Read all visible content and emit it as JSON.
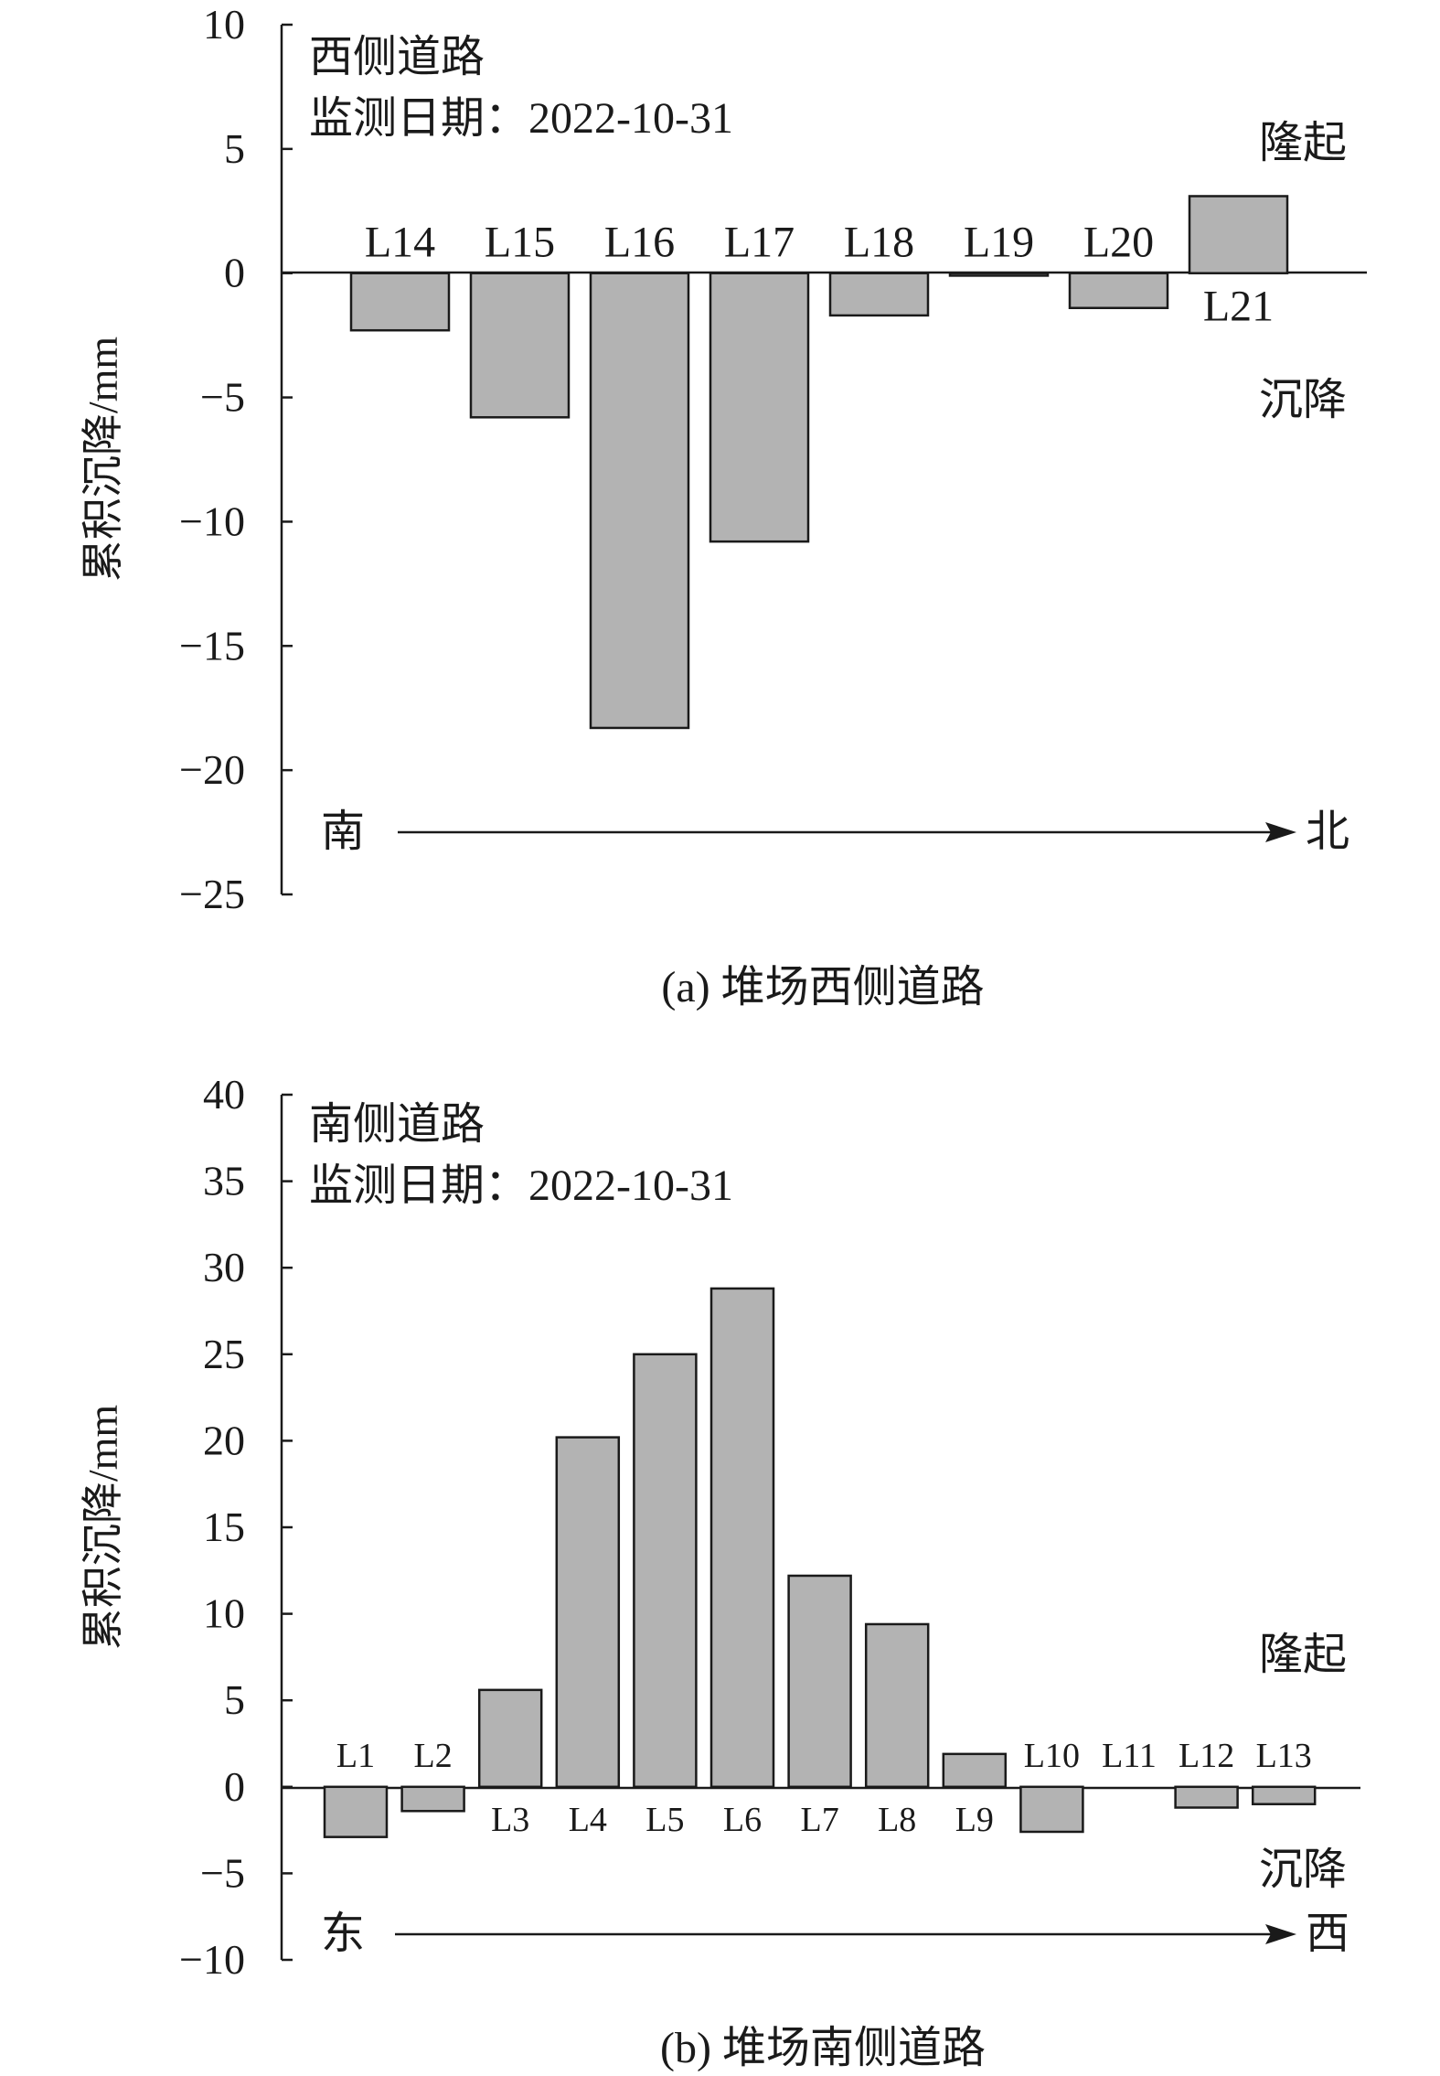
{
  "chart_data": [
    {
      "id": "a",
      "type": "bar",
      "title": "",
      "ylabel": "累积沉降/mm",
      "ylim": [
        -25,
        10
      ],
      "yticks": [
        10,
        5,
        0,
        -5,
        -10,
        -15,
        -20,
        -25
      ],
      "ytick_labels": [
        "10",
        "5",
        "0",
        "−5",
        "−10",
        "−15",
        "−20",
        "−25"
      ],
      "categories": [
        "L14",
        "L15",
        "L16",
        "L17",
        "L18",
        "L19",
        "L20",
        "L21"
      ],
      "values": [
        -2.3,
        -5.8,
        -18.3,
        -10.8,
        -1.7,
        -0.1,
        -1.4,
        3.1
      ],
      "info": [
        "西侧道路",
        "监测日期：2022-10-31"
      ],
      "annotations": {
        "uplift": "隆起",
        "settlement": "沉降"
      },
      "direction": {
        "from": "南",
        "to": "北"
      },
      "caption": "(a) 堆场西侧道路",
      "grid": false
    },
    {
      "id": "b",
      "type": "bar",
      "title": "",
      "ylabel": "累积沉降/mm",
      "ylim": [
        -10,
        40
      ],
      "yticks": [
        40,
        35,
        30,
        25,
        20,
        15,
        10,
        5,
        0,
        -5,
        -10
      ],
      "ytick_labels": [
        "40",
        "35",
        "30",
        "25",
        "20",
        "15",
        "10",
        "5",
        "0",
        "−5",
        "−10"
      ],
      "categories": [
        "L1",
        "L2",
        "L3",
        "L4",
        "L5",
        "L6",
        "L7",
        "L8",
        "L9",
        "L10",
        "L11",
        "L12",
        "L13"
      ],
      "values": [
        -2.9,
        -1.4,
        5.6,
        20.2,
        25.0,
        28.8,
        12.2,
        9.4,
        1.9,
        -2.6,
        0.0,
        -1.2,
        -1.0
      ],
      "info": [
        "南侧道路",
        "监测日期：2022-10-31"
      ],
      "annotations": {
        "uplift": "隆起",
        "settlement": "沉降"
      },
      "direction": {
        "from": "东",
        "to": "西"
      },
      "caption": "(b) 堆场南侧道路",
      "grid": false
    }
  ]
}
